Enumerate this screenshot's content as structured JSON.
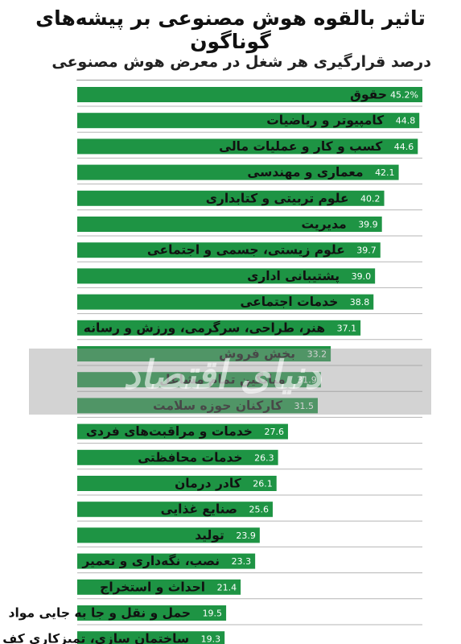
{
  "title": "تاثیر بالقوه هوش مصنوعی بر پیشه‌های گوناگون",
  "subtitle": "درصد قرارگیری هر شغل در معرض هوش مصنوعی",
  "watermark": "دنیای اقتصاد",
  "colors": {
    "bar": "#1e9444",
    "watermark_band": "#969696"
  },
  "chart_data": {
    "type": "bar",
    "orientation": "horizontal",
    "title": "تاثیر بالقوه هوش مصنوعی بر پیشه‌های گوناگون",
    "subtitle": "درصد قرارگیری هر شغل در معرض هوش مصنوعی",
    "xlabel": "",
    "ylabel": "",
    "xlim": [
      0,
      45.2
    ],
    "grid": false,
    "legend": "none",
    "categories": [
      "حقوق",
      "کامپیوتر و ریاضیات",
      "کسب و کار و عملیات مالی",
      "معماری و مهندسی",
      "علوم تربیتی و کتابداری",
      "مدیریت",
      "علوم زیستی، جسمی و اجتماعی",
      "پشتیبانی اداری",
      "خدمات اجتماعی",
      "هنر، طراحی، سرگرمی، ورزش و رسانه",
      "بخش فروش",
      "میانگین تمام مشاغل",
      "کارکنان حوزه سلامت",
      "خدمات و مراقبت‌های فردی",
      "خدمات محافظتی",
      "کادر درمان",
      "صنایع غذایی",
      "تولید",
      "نصب، نگه‌داری و تعمیر",
      "احداث و استخراج",
      "حمل و نقل و جا به جایی مواد",
      "ساختمان سازی، تمیزکاری کف و نگه‌داری"
    ],
    "values": [
      45.2,
      44.8,
      44.6,
      42.1,
      40.2,
      39.9,
      39.7,
      39.0,
      38.8,
      37.1,
      33.2,
      31.9,
      31.5,
      27.6,
      26.3,
      26.1,
      25.6,
      23.9,
      23.3,
      21.4,
      19.5,
      19.3
    ],
    "value_labels": [
      "45.2%",
      "44.8",
      "44.6",
      "42.1",
      "40.2",
      "39.9",
      "39.7",
      "39.0",
      "38.8",
      "37.1",
      "33.2",
      "31.9",
      "31.5",
      "27.6",
      "26.3",
      "26.1",
      "25.6",
      "23.9",
      "23.3",
      "21.4",
      "19.5",
      "19.3"
    ]
  }
}
